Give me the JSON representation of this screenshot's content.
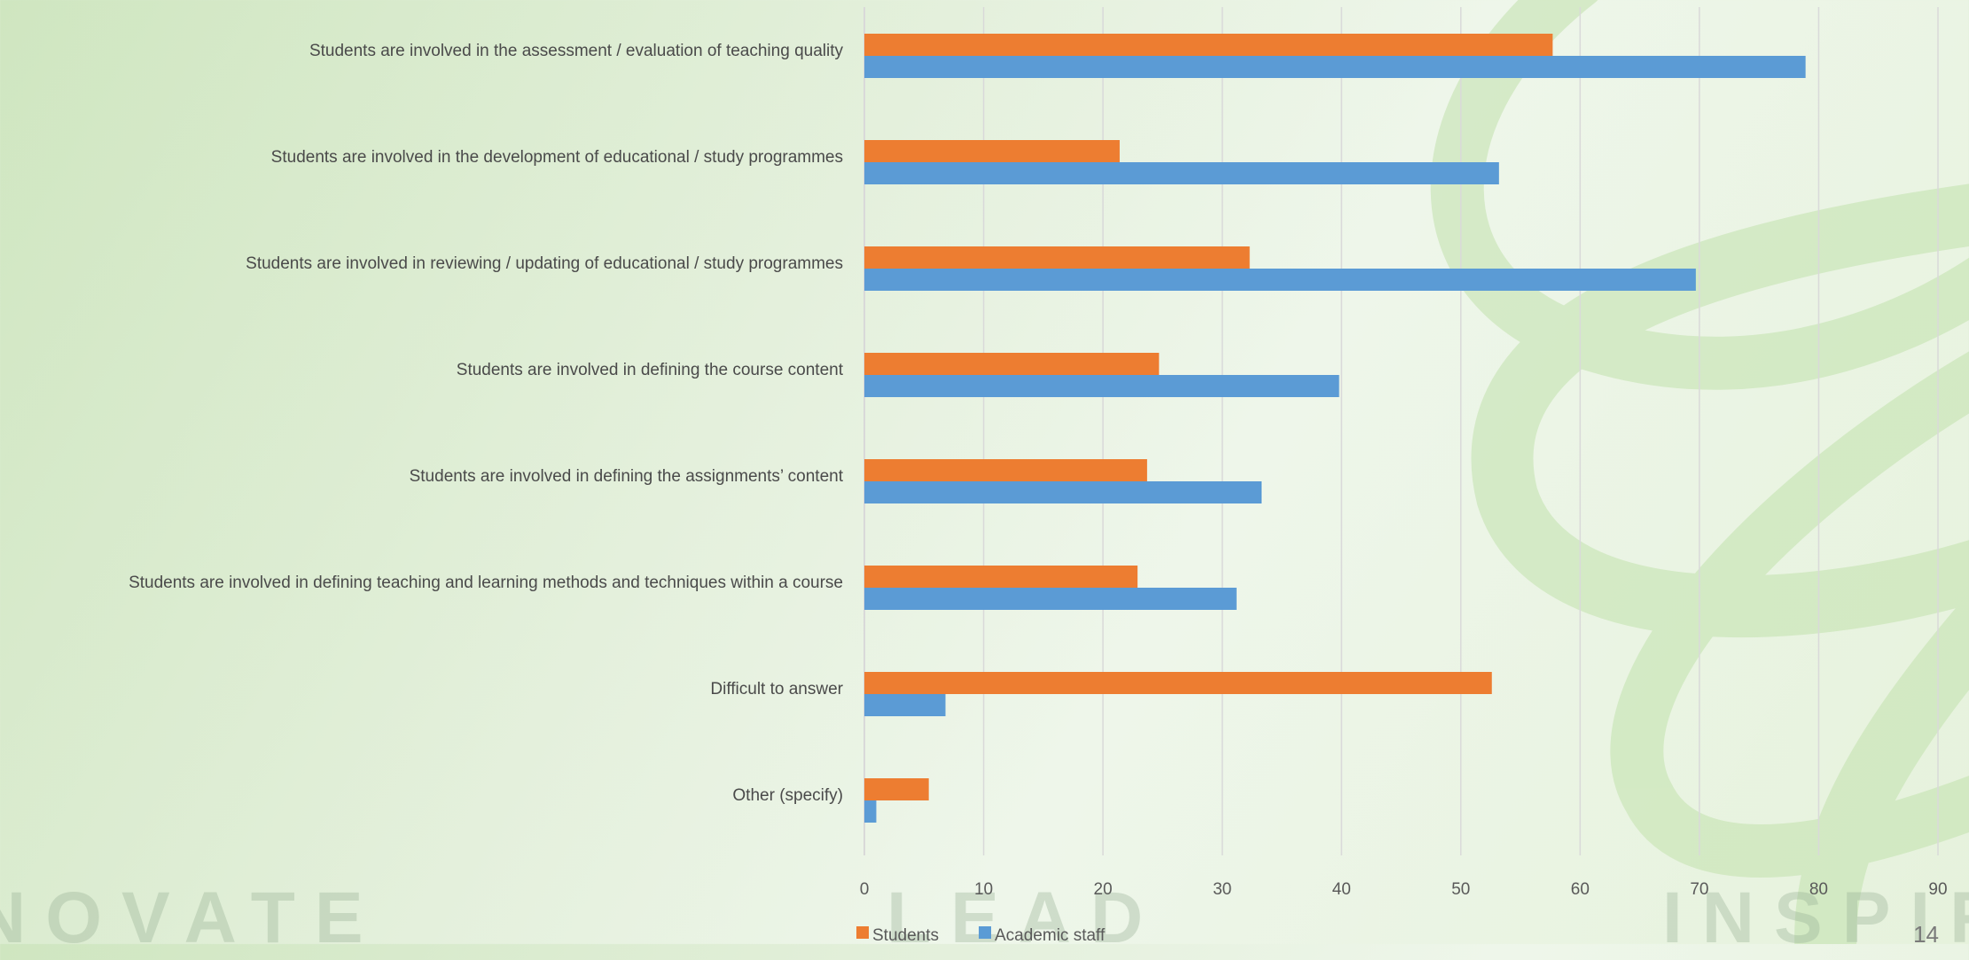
{
  "watermark": {
    "left": "NOVATE",
    "middle": "LEAD",
    "right": "INSPIRE"
  },
  "page_number": "14",
  "colors": {
    "students": "#ed7d31",
    "academic_staff": "#5b9bd5",
    "gridline": "#d9d9d9"
  },
  "chart_data": {
    "type": "bar",
    "orientation": "horizontal",
    "title": "",
    "xlabel": "",
    "ylabel": "",
    "xlim": [
      0,
      90
    ],
    "xticks": [
      0,
      10,
      20,
      30,
      40,
      50,
      60,
      70,
      80,
      90
    ],
    "grid": true,
    "legend_position": "bottom-left",
    "categories": [
      "Students are involved in the assessment / evaluation of teaching quality",
      "Students are involved in the development of educational / study programmes",
      "Students are involved in reviewing / updating of educational / study programmes",
      "Students are involved in defining the course content",
      "Students are involved in defining the assignments’ content",
      "Students are involved in defining teaching and learning methods and techniques within a course",
      "Difficult to answer",
      "Other (specify)"
    ],
    "series": [
      {
        "name": "Students",
        "color": "#ed7d31",
        "values": [
          57.7,
          21.4,
          32.3,
          24.7,
          23.7,
          22.9,
          52.6,
          5.4
        ]
      },
      {
        "name": "Academic staff",
        "color": "#5b9bd5",
        "values": [
          78.9,
          53.2,
          69.7,
          39.8,
          33.3,
          31.2,
          6.8,
          1.0
        ]
      }
    ]
  }
}
